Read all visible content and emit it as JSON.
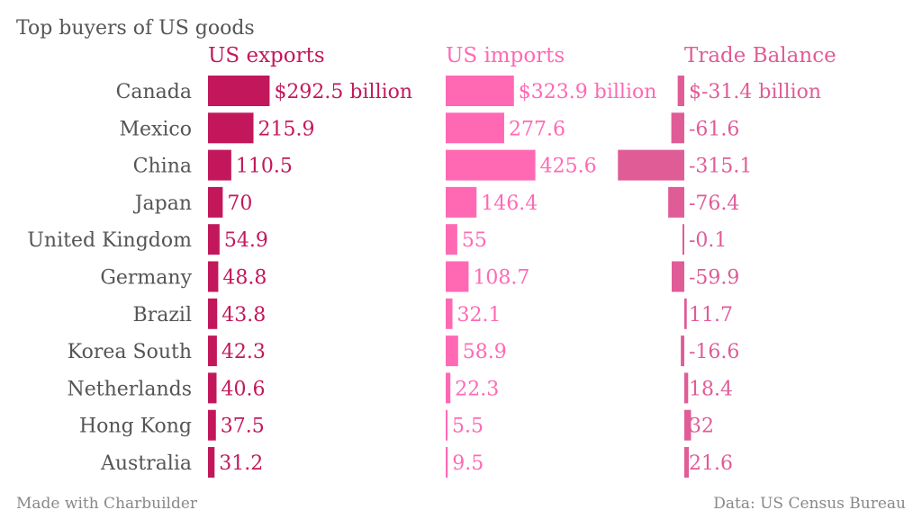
{
  "title": "Top buyers of US goods",
  "footer": {
    "left": "Made with Charbuilder",
    "right": "Data: US Census Bureau"
  },
  "colors": {
    "exports": "#c2185b",
    "imports": "#ff69b4",
    "balance": "#e05c97",
    "country_text": "#555555",
    "footer_text": "#888888"
  },
  "chart_data": {
    "type": "bar",
    "title": "Top buyers of US goods",
    "categories": [
      "Canada",
      "Mexico",
      "China",
      "Japan",
      "United Kingdom",
      "Germany",
      "Brazil",
      "Korea South",
      "Netherlands",
      "Hong Kong",
      "Australia"
    ],
    "series": [
      {
        "name": "US exports",
        "values": [
          292.5,
          215.9,
          110.5,
          70,
          54.9,
          48.8,
          43.8,
          42.3,
          40.6,
          37.5,
          31.2
        ],
        "labels": [
          "$292.5 billion",
          "215.9",
          "110.5",
          "70",
          "54.9",
          "48.8",
          "43.8",
          "42.3",
          "40.6",
          "37.5",
          "31.2"
        ],
        "color": "#c2185b"
      },
      {
        "name": "US imports",
        "values": [
          323.9,
          277.6,
          425.6,
          146.4,
          55,
          108.7,
          32.1,
          58.9,
          22.3,
          5.5,
          9.5
        ],
        "labels": [
          "$323.9 billion",
          "277.6",
          "425.6",
          "146.4",
          "55",
          "108.7",
          "32.1",
          "58.9",
          "22.3",
          "5.5",
          "9.5"
        ],
        "color": "#ff69b4"
      },
      {
        "name": "Trade Balance",
        "values": [
          -31.4,
          -61.6,
          -315.1,
          -76.4,
          -0.1,
          -59.9,
          11.7,
          -16.6,
          18.4,
          32,
          21.6
        ],
        "labels": [
          "$-31.4 billion",
          "-61.6",
          "-315.1",
          "-76.4",
          "-0.1",
          "-59.9",
          "11.7",
          "-16.6",
          "18.4",
          "32",
          "21.6"
        ],
        "color": "#e05c97"
      }
    ],
    "units": "billion $"
  }
}
